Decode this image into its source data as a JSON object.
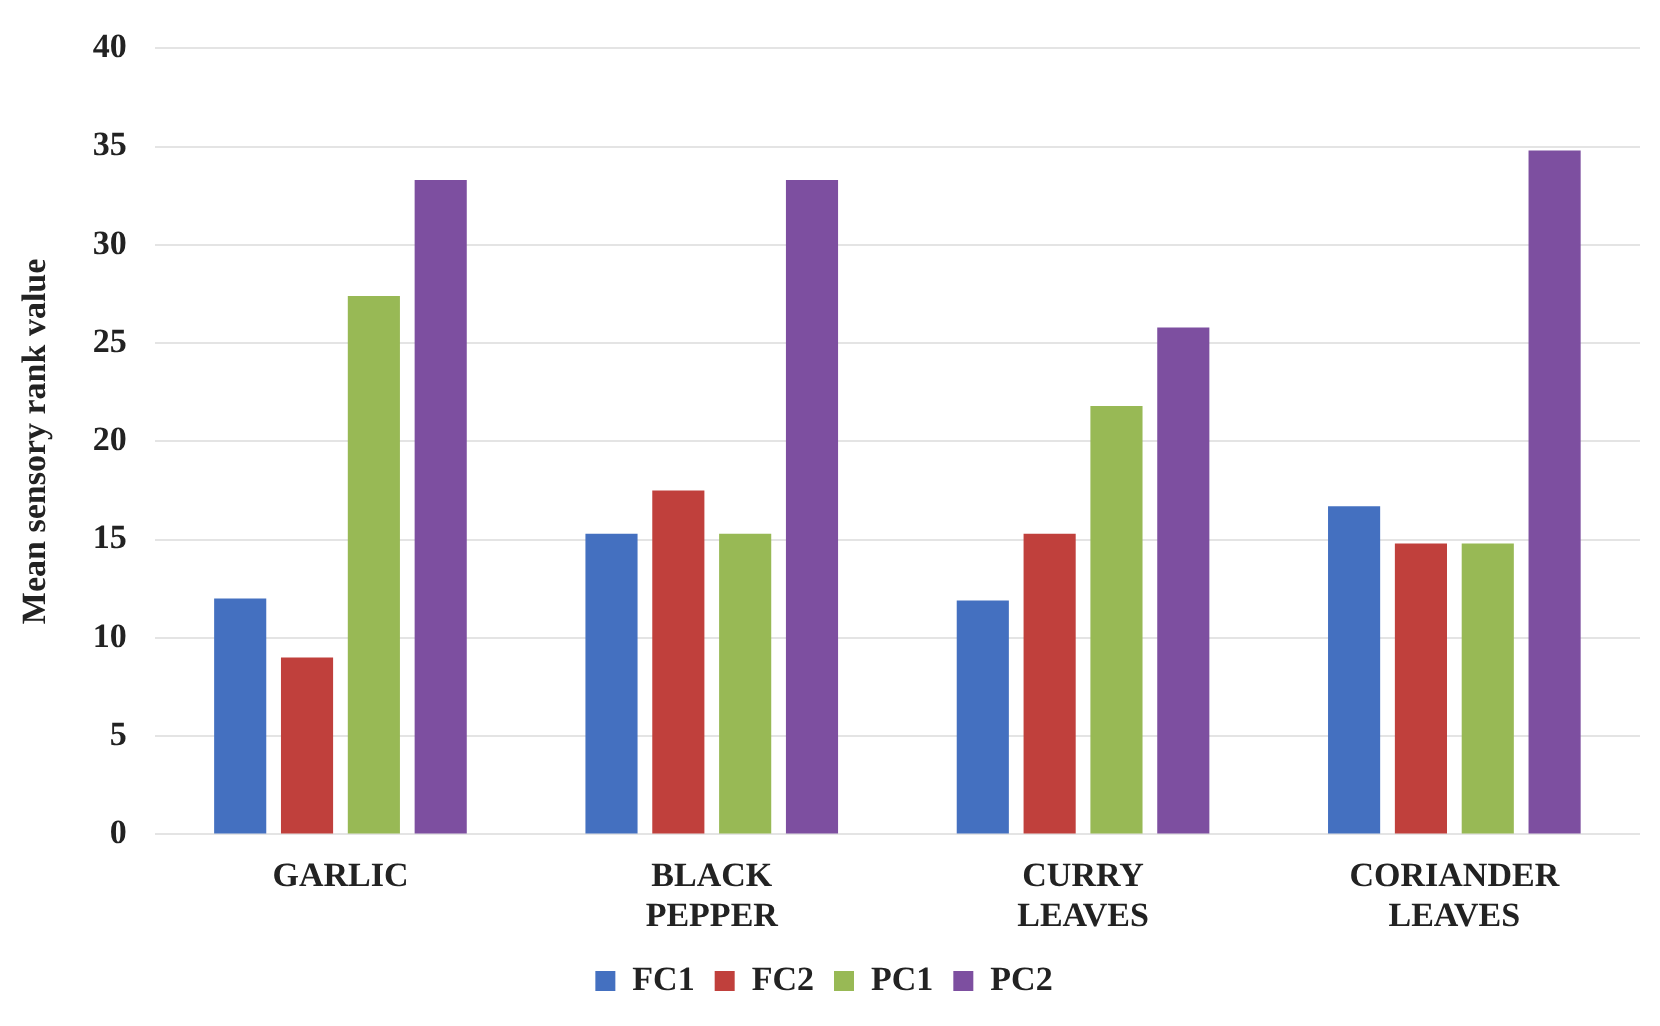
{
  "chart_data": {
    "type": "bar",
    "ylabel": "Mean sensory rank value",
    "categories": [
      "GARLIC",
      "BLACK PEPPER",
      "CURRY LEAVES",
      "CORIANDER LEAVES"
    ],
    "series": [
      {
        "name": "FC1",
        "color": "#4470c0",
        "values": [
          12.0,
          15.3,
          11.9,
          16.7
        ]
      },
      {
        "name": "FC2",
        "color": "#c0403c",
        "values": [
          9.0,
          17.5,
          15.3,
          14.8
        ]
      },
      {
        "name": "PC1",
        "color": "#98b955",
        "values": [
          27.4,
          15.3,
          21.8,
          14.8
        ]
      },
      {
        "name": "PC2",
        "color": "#7d4fa0",
        "values": [
          33.3,
          33.3,
          25.8,
          34.8
        ]
      }
    ],
    "ylim": [
      0,
      40
    ],
    "yticks": [
      0,
      5,
      10,
      15,
      20,
      25,
      30,
      35,
      40
    ],
    "grid": "y",
    "legend": "bottom"
  }
}
